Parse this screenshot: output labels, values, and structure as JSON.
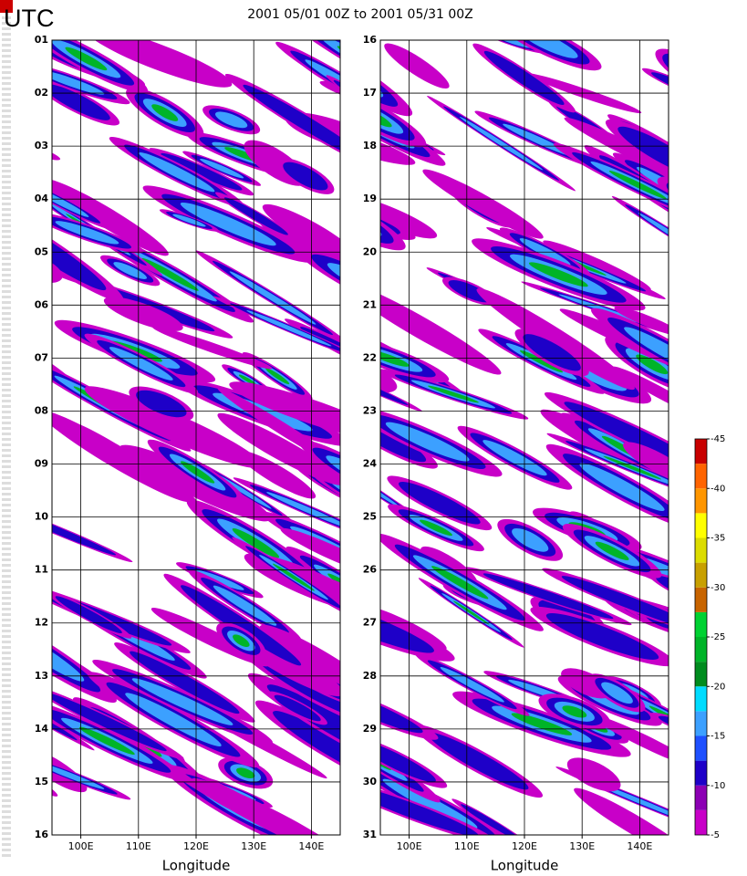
{
  "title": "2001 05/01 00Z to 2001 05/31 00Z",
  "y_label": "UTC",
  "chart_data": [
    {
      "type": "heatmap",
      "xlabel": "Longitude",
      "xlim": [
        95,
        145
      ],
      "xticks": [
        {
          "value": 100,
          "label": "100E"
        },
        {
          "value": 110,
          "label": "110E"
        },
        {
          "value": 120,
          "label": "120E"
        },
        {
          "value": 130,
          "label": "130E"
        },
        {
          "value": 140,
          "label": "140E"
        }
      ],
      "ylim": [
        1,
        16
      ],
      "y_inverted": true,
      "grid": true,
      "yticks": [
        {
          "value": 1,
          "label": "01"
        },
        {
          "value": 2,
          "label": "02"
        },
        {
          "value": 3,
          "label": "03"
        },
        {
          "value": 4,
          "label": "04"
        },
        {
          "value": 5,
          "label": "05"
        },
        {
          "value": 6,
          "label": "06"
        },
        {
          "value": 7,
          "label": "07"
        },
        {
          "value": 8,
          "label": "08"
        },
        {
          "value": 9,
          "label": "09"
        },
        10,
        11,
        12,
        13,
        14,
        15,
        16
      ]
    },
    {
      "type": "heatmap",
      "xlabel": "Longitude",
      "xlim": [
        95,
        145
      ],
      "xticks": [
        {
          "value": 100,
          "label": "100E"
        },
        {
          "value": 110,
          "label": "110E"
        },
        {
          "value": 120,
          "label": "120E"
        },
        {
          "value": 130,
          "label": "130E"
        },
        {
          "value": 140,
          "label": "140E"
        }
      ],
      "ylim": [
        16,
        31
      ],
      "y_inverted": true,
      "grid": true,
      "yticks": [
        16,
        17,
        18,
        19,
        20,
        21,
        22,
        23,
        24,
        25,
        26,
        27,
        28,
        29,
        30,
        31
      ]
    }
  ],
  "colorbar": {
    "bounds": [
      -5,
      -7.5,
      -10,
      -12.5,
      -15,
      -17.5,
      -20,
      -22.5,
      -25,
      -27.5,
      -30,
      -32.5,
      -35,
      -37.5,
      -40,
      -42.5,
      -45
    ],
    "colors": [
      "#c800c8",
      "#8c00b4",
      "#1e00c8",
      "#1e50ff",
      "#3ca0ff",
      "#00dcff",
      "#008c1e",
      "#00b428",
      "#00d232",
      "#c86400",
      "#c8a000",
      "#dcdc00",
      "#ffff00",
      "#ff9600",
      "#ff6400",
      "#c80000"
    ],
    "ticks": [
      -45,
      -40,
      -35,
      -30,
      -25,
      -20,
      -15,
      -10,
      -5
    ]
  }
}
